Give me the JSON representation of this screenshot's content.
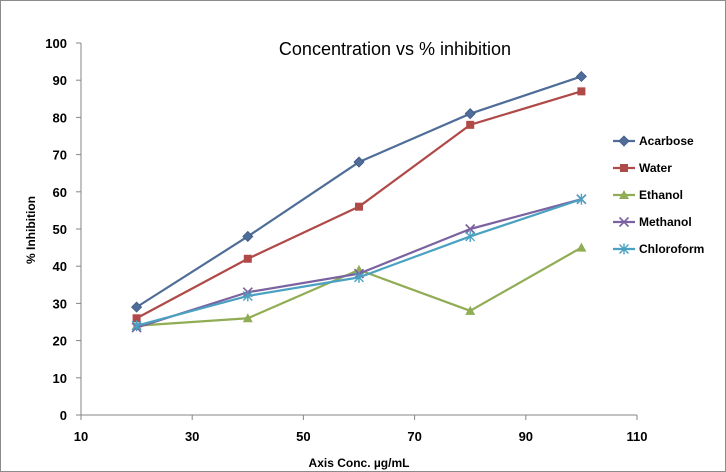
{
  "chart_data": {
    "type": "line",
    "title": "Concentration vs % inhibition",
    "xlabel": "Axis Conc. µg/mL",
    "ylabel": "% Inhibition",
    "xlim": [
      10,
      110
    ],
    "ylim": [
      0,
      100
    ],
    "xticks": [
      10,
      30,
      50,
      70,
      90,
      110
    ],
    "yticks": [
      0,
      10,
      20,
      30,
      40,
      50,
      60,
      70,
      80,
      90,
      100
    ],
    "grid": false,
    "legend_position": "right",
    "series": [
      {
        "name": "Acarbose",
        "color": "#4f6d98",
        "marker": "diamond",
        "x": [
          20,
          40,
          60,
          80,
          100
        ],
        "y": [
          29,
          48,
          68,
          81,
          91
        ]
      },
      {
        "name": "Water",
        "color": "#b04a48",
        "marker": "square",
        "x": [
          20,
          40,
          60,
          80,
          100
        ],
        "y": [
          26,
          42,
          56,
          78,
          87
        ]
      },
      {
        "name": "Ethanol",
        "color": "#90ad55",
        "marker": "triangle",
        "x": [
          20,
          40,
          60,
          80,
          100
        ],
        "y": [
          24,
          26,
          39,
          28,
          45
        ]
      },
      {
        "name": "Methanol",
        "color": "#7b62a0",
        "marker": "x",
        "x": [
          20,
          40,
          60,
          80,
          100
        ],
        "y": [
          23.5,
          33,
          38,
          50,
          58
        ]
      },
      {
        "name": "Chloroform",
        "color": "#4aa1c1",
        "marker": "star",
        "x": [
          20,
          40,
          60,
          80,
          100
        ],
        "y": [
          24,
          32,
          37,
          48,
          58
        ]
      }
    ]
  }
}
